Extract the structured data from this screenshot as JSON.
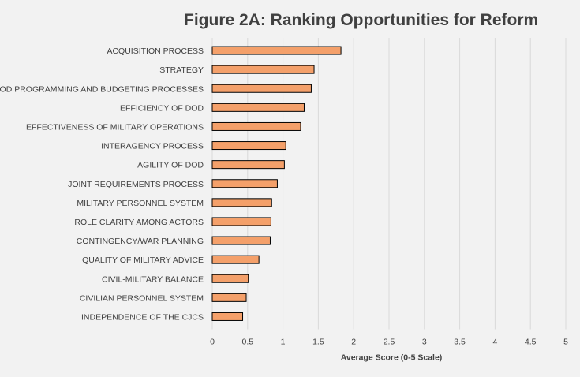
{
  "chart_data": {
    "type": "bar",
    "orientation": "horizontal",
    "title": "Figure 2A: Ranking Opportunities for Reform",
    "xlabel": "Average Score (0-5 Scale)",
    "ylabel": "",
    "xlim": [
      0,
      5
    ],
    "xticks": [
      "0",
      "0.5",
      "1",
      "1.5",
      "2",
      "2.5",
      "3",
      "3.5",
      "4",
      "4.5",
      "5"
    ],
    "tick_step": 0.5,
    "grid": "vertical",
    "legend": "none",
    "bar_color": "#f4a06a",
    "bar_border": "#000000",
    "categories": [
      "ACQUISITION PROCESS",
      "STRATEGY",
      "DOD PROGRAMMING AND BUDGETING PROCESSES",
      "EFFICIENCY OF DOD",
      "EFFECTIVENESS OF MILITARY OPERATIONS",
      "INTERAGENCY PROCESS",
      "AGILITY OF DOD",
      "JOINT REQUIREMENTS PROCESS",
      "MILITARY PERSONNEL SYSTEM",
      "ROLE CLARITY AMONG ACTORS",
      "CONTINGENCY/WAR PLANNING",
      "QUALITY OF MILITARY ADVICE",
      "CIVIL-MILITARY BALANCE",
      "CIVILIAN PERSONNEL SYSTEM",
      "INDEPENDENCE OF THE CJCS"
    ],
    "values": [
      1.82,
      1.44,
      1.4,
      1.3,
      1.25,
      1.04,
      1.02,
      0.92,
      0.84,
      0.83,
      0.82,
      0.66,
      0.51,
      0.48,
      0.43
    ]
  }
}
